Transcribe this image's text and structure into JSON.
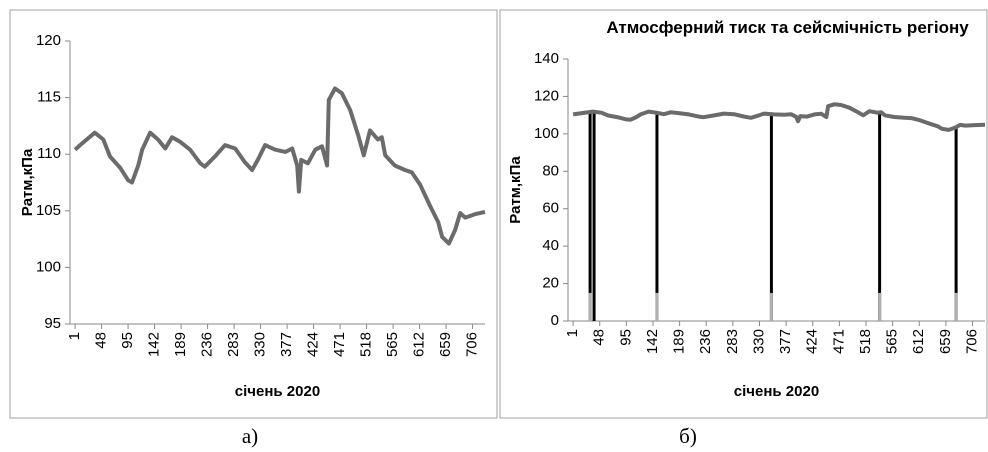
{
  "chart_data": [
    {
      "type": "line",
      "caption": "а)",
      "y_label": "Pатм,кПа",
      "x_label": "січень 2020",
      "xlim": [
        -8,
        728
      ],
      "xticks": [
        1,
        48,
        95,
        142,
        189,
        236,
        283,
        330,
        377,
        424,
        471,
        518,
        565,
        612,
        659,
        706
      ],
      "ylim": [
        95,
        120
      ],
      "yticks": [
        95,
        100,
        105,
        110,
        115,
        120
      ],
      "grid": false,
      "series": [
        {
          "type": "line",
          "color": "#6b6b6b",
          "x": [
            1,
            10,
            36,
            51,
            63,
            81,
            95,
            102,
            113,
            120,
            134,
            148,
            161,
            173,
            187,
            205,
            223,
            231,
            249,
            267,
            285,
            302,
            315,
            325,
            338,
            356,
            374,
            386,
            395,
            398,
            402,
            414,
            427,
            439,
            448,
            451,
            462,
            474,
            489,
            503,
            513,
            524,
            538,
            545,
            551,
            568,
            586,
            598,
            613,
            630,
            645,
            652,
            664,
            675,
            684,
            693,
            710,
            728
          ],
          "values": [
            110.4,
            110.8,
            111.9,
            111.3,
            109.8,
            108.8,
            107.7,
            107.5,
            109.0,
            110.4,
            111.9,
            111.3,
            110.5,
            111.5,
            111.1,
            110.4,
            109.2,
            108.9,
            109.8,
            110.8,
            110.5,
            109.3,
            108.6,
            109.5,
            110.8,
            110.4,
            110.2,
            110.5,
            109.0,
            106.7,
            109.5,
            109.2,
            110.4,
            110.7,
            109.0,
            114.8,
            115.8,
            115.4,
            113.9,
            111.7,
            109.9,
            112.1,
            111.3,
            111.5,
            109.9,
            109.0,
            108.6,
            108.4,
            107.3,
            105.5,
            104.0,
            102.7,
            102.1,
            103.3,
            104.8,
            104.4,
            104.7,
            104.9
          ]
        }
      ]
    },
    {
      "type": "line",
      "caption": "б)",
      "title": "Атмосферний тиск та сейсмічність регіону",
      "y_label": "Ратм,кПа",
      "x_label": "січень 2020",
      "xlim": [
        -8,
        728
      ],
      "xticks": [
        1,
        48,
        95,
        142,
        189,
        236,
        283,
        330,
        377,
        424,
        471,
        518,
        565,
        612,
        659,
        706
      ],
      "ylim": [
        0,
        140
      ],
      "yticks": [
        0,
        20,
        40,
        60,
        80,
        100,
        120,
        140
      ],
      "grid": false,
      "series": [
        {
          "type": "line",
          "color": "#6b6b6b",
          "x": [
            1,
            10,
            36,
            51,
            63,
            81,
            95,
            102,
            113,
            120,
            134,
            148,
            161,
            173,
            187,
            205,
            223,
            231,
            249,
            267,
            285,
            302,
            315,
            325,
            338,
            356,
            374,
            386,
            395,
            398,
            402,
            414,
            427,
            439,
            448,
            451,
            462,
            474,
            489,
            503,
            513,
            524,
            538,
            545,
            551,
            568,
            586,
            598,
            613,
            630,
            645,
            652,
            664,
            675,
            684,
            693,
            710,
            728
          ],
          "values": [
            110.4,
            110.8,
            111.9,
            111.3,
            109.8,
            108.8,
            107.7,
            107.5,
            109.0,
            110.4,
            111.9,
            111.3,
            110.5,
            111.5,
            111.1,
            110.4,
            109.2,
            108.9,
            109.8,
            110.8,
            110.5,
            109.3,
            108.6,
            109.5,
            110.8,
            110.4,
            110.2,
            110.5,
            109.0,
            106.7,
            109.5,
            109.2,
            110.4,
            110.7,
            109.0,
            114.8,
            115.8,
            115.4,
            113.9,
            111.7,
            109.9,
            112.1,
            111.3,
            111.5,
            109.9,
            109.0,
            108.6,
            108.4,
            107.3,
            105.5,
            104.0,
            102.7,
            102.1,
            103.3,
            104.8,
            104.4,
            104.7,
            104.9
          ]
        },
        {
          "type": "bar",
          "color": "#000000",
          "x": [
            31,
            38,
            149,
            351,
            542,
            677
          ],
          "values": [
            112,
            112,
            111,
            111,
            111,
            103
          ]
        },
        {
          "type": "bar",
          "color": "#b0b0b0",
          "x": [
            31,
            149,
            351,
            542,
            677
          ],
          "values": [
            15,
            15,
            15,
            15,
            15
          ]
        }
      ]
    }
  ]
}
